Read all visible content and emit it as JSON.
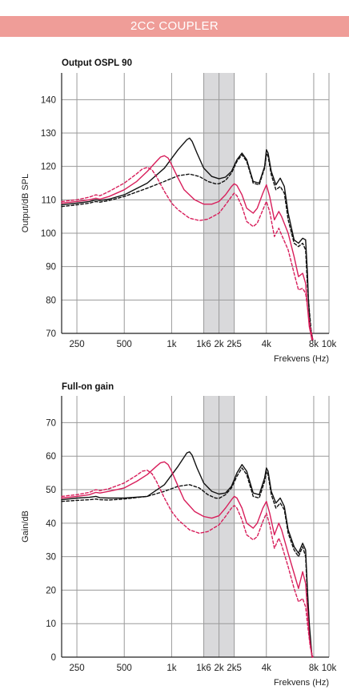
{
  "header": {
    "title": "2CC COUPLER"
  },
  "colors": {
    "header_bg": "#ef9d98",
    "black": "#111111",
    "magenta": "#d81e5b",
    "band": "#d9d9db",
    "grid": "#9a9a9a"
  },
  "chart_data": [
    {
      "type": "line",
      "title": "Output OSPL 90",
      "ylabel": "Output/dB SPL",
      "xlabel": "Frekvens (Hz)",
      "xscale": "log",
      "xlim": [
        200,
        10000
      ],
      "ylim": [
        70,
        148
      ],
      "xticks": [
        250,
        500,
        1000,
        1600,
        2000,
        2500,
        4000,
        8000,
        10000
      ],
      "xticklabels": [
        "250",
        "500",
        "1k",
        "1k6",
        "2k",
        "2k5",
        "4k",
        "8k",
        "10k"
      ],
      "yticks": [
        70,
        80,
        90,
        100,
        110,
        120,
        130,
        140
      ],
      "band": [
        1600,
        2500
      ],
      "series": [
        {
          "color": "#111111",
          "dash": false,
          "x": [
            200,
            250,
            300,
            330,
            350,
            400,
            500,
            700,
            900,
            1100,
            1250,
            1300,
            1350,
            1450,
            1600,
            1800,
            2000,
            2200,
            2400,
            2600,
            2800,
            3000,
            3300,
            3600,
            3900,
            4000,
            4100,
            4300,
            4600,
            4900,
            5200,
            5500,
            6000,
            6400,
            6800,
            7100,
            7300,
            7400,
            7600,
            7900
          ],
          "y": [
            108.5,
            109,
            109.5,
            110,
            109.8,
            110.2,
            111.5,
            115,
            119.5,
            125,
            128,
            128.5,
            127.5,
            124,
            119.5,
            117,
            116.3,
            116.8,
            118.5,
            122,
            124,
            122,
            115.5,
            115,
            120,
            125,
            124,
            118.5,
            114.5,
            116.5,
            114,
            106,
            98,
            97,
            98.5,
            98,
            88,
            80,
            72,
            68
          ]
        },
        {
          "color": "#111111",
          "dash": true,
          "x": [
            200,
            250,
            300,
            330,
            350,
            400,
            500,
            700,
            900,
            1100,
            1300,
            1500,
            1700,
            1900,
            2000,
            2200,
            2400,
            2600,
            2800,
            3000,
            3300,
            3600,
            3900,
            4000,
            4100,
            4300,
            4600,
            4900,
            5200,
            5500,
            6000,
            6400,
            6800,
            7100,
            7300,
            7500,
            7800
          ],
          "y": [
            108,
            108.5,
            109,
            109.5,
            109.3,
            109.8,
            111,
            113.5,
            115.5,
            117.2,
            117.7,
            117,
            115.5,
            114.8,
            114.8,
            115.8,
            118,
            121.5,
            123.5,
            121.5,
            115,
            114.5,
            119.5,
            124,
            123,
            117.5,
            113,
            114,
            112,
            104,
            97,
            96,
            97,
            95,
            84,
            77,
            68
          ]
        },
        {
          "color": "#d81e5b",
          "dash": false,
          "x": [
            200,
            250,
            300,
            330,
            350,
            400,
            500,
            600,
            700,
            800,
            850,
            900,
            950,
            1000,
            1100,
            1200,
            1400,
            1600,
            1800,
            2000,
            2200,
            2400,
            2500,
            2600,
            2800,
            3000,
            3300,
            3500,
            3800,
            4000,
            4200,
            4500,
            4800,
            5000,
            5500,
            6000,
            6400,
            6800,
            7100,
            7300,
            7500,
            7800
          ],
          "y": [
            109,
            109.5,
            110,
            110.5,
            110.2,
            111,
            113,
            115.5,
            118.5,
            121.5,
            122.8,
            123.2,
            122.5,
            120.5,
            116.5,
            113,
            110,
            108.7,
            108.7,
            109.5,
            111.5,
            114,
            114.8,
            114.3,
            111.5,
            107.5,
            106,
            107.5,
            112,
            114.5,
            111,
            104,
            106.5,
            105,
            100,
            93,
            87,
            88,
            85,
            78,
            72,
            68
          ]
        },
        {
          "color": "#d81e5b",
          "dash": true,
          "x": [
            200,
            250,
            300,
            330,
            350,
            400,
            500,
            600,
            650,
            700,
            750,
            800,
            900,
            1000,
            1100,
            1300,
            1500,
            1700,
            2000,
            2200,
            2400,
            2500,
            2600,
            2800,
            3000,
            3300,
            3500,
            3800,
            4000,
            4200,
            4500,
            4800,
            5000,
            5500,
            6000,
            6400,
            6800,
            7100,
            7300,
            7600,
            7900
          ],
          "y": [
            109.5,
            110,
            110.8,
            111.5,
            111.2,
            112.5,
            115,
            117.8,
            119.2,
            119.7,
            119,
            117,
            112.5,
            109,
            107,
            104.5,
            103.8,
            104.2,
            106,
            108.5,
            111,
            112,
            111.2,
            108,
            103.5,
            102,
            103,
            107,
            109.5,
            106.5,
            99,
            101.5,
            99.5,
            95,
            88,
            83,
            83.5,
            82,
            78,
            72,
            68
          ]
        }
      ]
    },
    {
      "type": "line",
      "title": "Full-on gain",
      "ylabel": "Gain/dB",
      "xlabel": "Frekvens (Hz)",
      "xscale": "log",
      "xlim": [
        200,
        10000
      ],
      "ylim": [
        0,
        78
      ],
      "xticks": [
        250,
        500,
        1000,
        1600,
        2000,
        2500,
        4000,
        8000,
        10000
      ],
      "xticklabels": [
        "250",
        "500",
        "1k",
        "1k6",
        "2k",
        "2k5",
        "4k",
        "8k",
        "10k"
      ],
      "yticks": [
        0,
        10,
        20,
        30,
        40,
        50,
        60,
        70
      ],
      "band": [
        1600,
        2500
      ],
      "series": [
        {
          "color": "#111111",
          "dash": false,
          "x": [
            200,
            250,
            300,
            330,
            350,
            400,
            500,
            700,
            900,
            1100,
            1250,
            1300,
            1350,
            1450,
            1600,
            1800,
            2000,
            2200,
            2400,
            2600,
            2800,
            3000,
            3300,
            3600,
            3900,
            4000,
            4100,
            4300,
            4600,
            4900,
            5200,
            5500,
            6000,
            6400,
            6800,
            7100,
            7300,
            7500,
            7800
          ],
          "y": [
            47,
            47.5,
            47.7,
            48,
            47.6,
            47.5,
            47.5,
            48,
            51.5,
            57,
            61,
            61.3,
            60.3,
            56.5,
            52,
            49.5,
            48.7,
            49,
            51,
            55,
            57.5,
            55.5,
            49,
            48.5,
            53.5,
            56.5,
            55.5,
            49.5,
            46,
            47.5,
            45,
            38,
            33,
            31,
            34,
            32,
            20,
            10,
            0
          ]
        },
        {
          "color": "#111111",
          "dash": true,
          "x": [
            200,
            250,
            300,
            330,
            350,
            400,
            500,
            700,
            900,
            1100,
            1300,
            1500,
            1700,
            1900,
            2000,
            2200,
            2400,
            2600,
            2800,
            3000,
            3300,
            3600,
            3900,
            4000,
            4100,
            4300,
            4600,
            4900,
            5200,
            5500,
            6000,
            6400,
            6800,
            7100,
            7300,
            7500,
            7800
          ],
          "y": [
            46.5,
            46.8,
            47,
            47.2,
            47,
            46.9,
            47.2,
            48,
            49.5,
            51,
            51.5,
            50.5,
            48.5,
            47.5,
            47.4,
            48.5,
            50.5,
            54,
            56.5,
            54.5,
            48,
            47.5,
            52.5,
            55.5,
            54.5,
            48.5,
            44.5,
            46,
            44,
            37,
            32,
            30,
            33,
            30,
            18,
            8,
            0
          ]
        },
        {
          "color": "#d81e5b",
          "dash": false,
          "x": [
            200,
            250,
            300,
            330,
            350,
            400,
            500,
            600,
            700,
            800,
            850,
            900,
            950,
            1000,
            1100,
            1200,
            1400,
            1600,
            1800,
            2000,
            2200,
            2400,
            2500,
            2600,
            2800,
            3000,
            3300,
            3500,
            3800,
            4000,
            4200,
            4500,
            4800,
            5000,
            5500,
            6000,
            6400,
            6800,
            7100,
            7300,
            7500,
            7800
          ],
          "y": [
            47.5,
            48,
            48.5,
            49.2,
            49,
            49.5,
            50.5,
            52.5,
            54.5,
            57,
            58,
            58.3,
            57.5,
            55.5,
            51,
            47,
            43.5,
            42,
            41.5,
            42.2,
            44.5,
            47,
            48,
            47.5,
            44.5,
            40,
            38.5,
            40,
            44.5,
            46.5,
            43,
            36.5,
            40,
            38,
            31,
            25,
            20.5,
            25.5,
            22,
            14,
            6,
            0
          ]
        },
        {
          "color": "#d81e5b",
          "dash": true,
          "x": [
            200,
            250,
            300,
            330,
            350,
            400,
            500,
            600,
            650,
            700,
            750,
            800,
            900,
            1000,
            1100,
            1300,
            1500,
            1700,
            2000,
            2200,
            2400,
            2500,
            2600,
            2800,
            3000,
            3300,
            3500,
            3800,
            4000,
            4200,
            4500,
            4800,
            5000,
            5500,
            6000,
            6400,
            6800,
            7100,
            7300,
            7600,
            7900
          ],
          "y": [
            48,
            48.5,
            49.2,
            50,
            49.7,
            50.3,
            52,
            54.3,
            55.5,
            55.8,
            54.8,
            52.5,
            47.5,
            43.5,
            41,
            38,
            37,
            37.5,
            39.5,
            42,
            44.5,
            45.3,
            44.5,
            41,
            36.5,
            35,
            36,
            40.5,
            43,
            39.5,
            32.5,
            35.5,
            33.5,
            27,
            20.5,
            16.5,
            17.5,
            15,
            10,
            3,
            0
          ]
        }
      ]
    }
  ]
}
